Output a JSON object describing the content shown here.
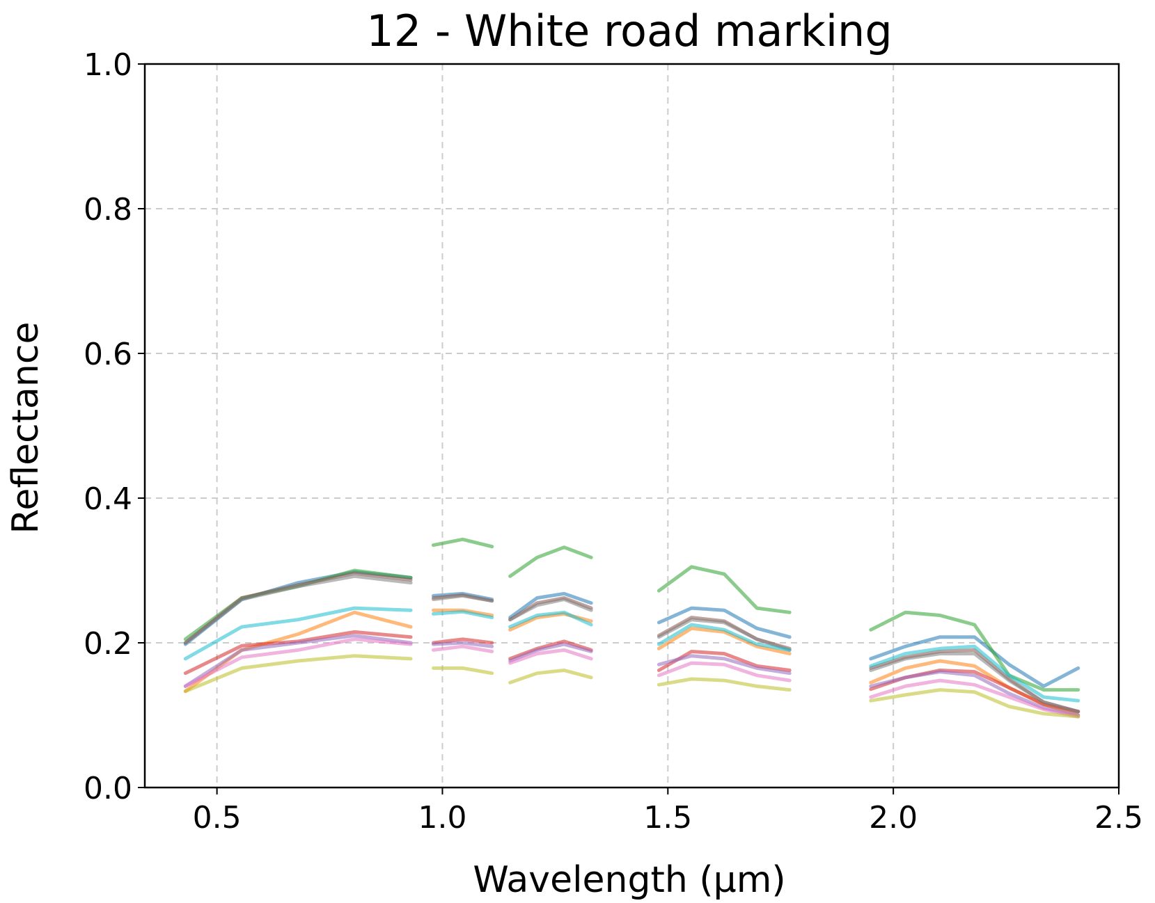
{
  "chart_data": {
    "type": "line",
    "title": "12 - White road marking",
    "xlabel": "Wavelength (μm)",
    "ylabel": "Reflectance",
    "xlim": [
      0.34,
      2.5
    ],
    "ylim": [
      0.0,
      1.0
    ],
    "xticks": [
      "0.5",
      "1.0",
      "1.5",
      "2.0",
      "2.5"
    ],
    "yticks": [
      "0.0",
      "0.2",
      "0.4",
      "0.6",
      "0.8",
      "1.0"
    ],
    "grid": true,
    "segments": [
      [
        0.43,
        0.93
      ],
      [
        0.98,
        1.11
      ],
      [
        1.15,
        1.33
      ],
      [
        1.48,
        1.77
      ],
      [
        1.95,
        2.41
      ]
    ],
    "series": [
      {
        "color": "#1f77b4",
        "values": [
          [
            0.198,
            0.26,
            0.283,
            0.298,
            0.29
          ],
          [
            0.265,
            0.268,
            0.26
          ],
          [
            0.235,
            0.262,
            0.268,
            0.255
          ],
          [
            0.228,
            0.248,
            0.245,
            0.22,
            0.208
          ],
          [
            0.178,
            0.195,
            0.208,
            0.208,
            0.17,
            0.14,
            0.165
          ]
        ]
      },
      {
        "color": "#ff7f0e",
        "values": [
          [
            0.133,
            0.19,
            0.212,
            0.242,
            0.222
          ],
          [
            0.245,
            0.245,
            0.238
          ],
          [
            0.218,
            0.235,
            0.24,
            0.23
          ],
          [
            0.192,
            0.22,
            0.215,
            0.195,
            0.185
          ],
          [
            0.145,
            0.165,
            0.175,
            0.168,
            0.138,
            0.115,
            0.1
          ]
        ]
      },
      {
        "color": "#2ca02c",
        "values": [
          [
            0.205,
            0.262,
            0.278,
            0.3,
            0.29
          ],
          [
            0.335,
            0.343,
            0.333
          ],
          [
            0.292,
            0.318,
            0.332,
            0.318
          ],
          [
            0.272,
            0.305,
            0.295,
            0.248,
            0.242
          ],
          [
            0.218,
            0.242,
            0.238,
            0.225,
            0.155,
            0.135,
            0.135
          ]
        ]
      },
      {
        "color": "#d62728",
        "values": [
          [
            0.158,
            0.196,
            0.202,
            0.215,
            0.208
          ],
          [
            0.2,
            0.205,
            0.2
          ],
          [
            0.178,
            0.192,
            0.202,
            0.19
          ],
          [
            0.162,
            0.188,
            0.185,
            0.168,
            0.162
          ],
          [
            0.136,
            0.152,
            0.162,
            0.16,
            0.138,
            0.115,
            0.105
          ]
        ]
      },
      {
        "color": "#9467bd",
        "values": [
          [
            0.14,
            0.19,
            0.2,
            0.21,
            0.2
          ],
          [
            0.198,
            0.2,
            0.195
          ],
          [
            0.175,
            0.19,
            0.198,
            0.188
          ],
          [
            0.17,
            0.182,
            0.178,
            0.165,
            0.158
          ],
          [
            0.14,
            0.152,
            0.16,
            0.155,
            0.13,
            0.11,
            0.1
          ]
        ]
      },
      {
        "color": "#8c564b",
        "values": [
          [
            0.2,
            0.262,
            0.28,
            0.296,
            0.287
          ],
          [
            0.262,
            0.266,
            0.258
          ],
          [
            0.232,
            0.255,
            0.262,
            0.248
          ],
          [
            0.21,
            0.235,
            0.23,
            0.205,
            0.192
          ],
          [
            0.165,
            0.18,
            0.188,
            0.19,
            0.15,
            0.118,
            0.105
          ]
        ]
      },
      {
        "color": "#e377c2",
        "values": [
          [
            0.14,
            0.18,
            0.19,
            0.205,
            0.198
          ],
          [
            0.19,
            0.195,
            0.188
          ],
          [
            0.172,
            0.185,
            0.19,
            0.178
          ],
          [
            0.155,
            0.172,
            0.17,
            0.155,
            0.148
          ],
          [
            0.125,
            0.14,
            0.148,
            0.142,
            0.125,
            0.108,
            0.098
          ]
        ]
      },
      {
        "color": "#7f7f7f",
        "values": [
          [
            0.2,
            0.26,
            0.278,
            0.292,
            0.283
          ],
          [
            0.26,
            0.265,
            0.258
          ],
          [
            0.232,
            0.252,
            0.26,
            0.245
          ],
          [
            0.208,
            0.232,
            0.228,
            0.205,
            0.19
          ],
          [
            0.162,
            0.178,
            0.185,
            0.185,
            0.148,
            0.118,
            0.105
          ]
        ]
      },
      {
        "color": "#bcbd22",
        "values": [
          [
            0.133,
            0.165,
            0.175,
            0.182,
            0.178
          ],
          [
            0.165,
            0.165,
            0.158
          ],
          [
            0.145,
            0.158,
            0.162,
            0.152
          ],
          [
            0.142,
            0.15,
            0.148,
            0.14,
            0.135
          ],
          [
            0.12,
            0.128,
            0.135,
            0.132,
            0.112,
            0.102,
            0.098
          ]
        ]
      },
      {
        "color": "#17becf",
        "values": [
          [
            0.178,
            0.222,
            0.232,
            0.248,
            0.245
          ],
          [
            0.24,
            0.243,
            0.235
          ],
          [
            0.222,
            0.238,
            0.242,
            0.225
          ],
          [
            0.198,
            0.225,
            0.218,
            0.198,
            0.19
          ],
          [
            0.168,
            0.185,
            0.192,
            0.195,
            0.155,
            0.125,
            0.12
          ]
        ]
      }
    ]
  }
}
